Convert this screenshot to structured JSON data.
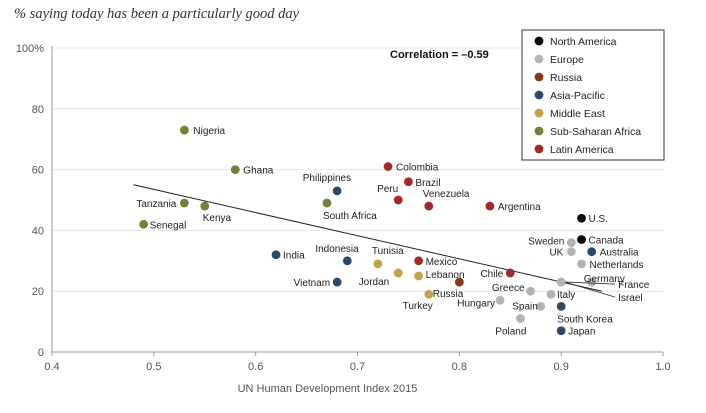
{
  "chart_data": {
    "type": "scatter",
    "title": "% saying today has been a particularly good day",
    "xlabel": "UN Human Development Index 2015",
    "ylabel": "",
    "xlim": [
      0.4,
      1.0
    ],
    "ylim": [
      0,
      100
    ],
    "x_ticks": [
      "0.4",
      "0.5",
      "0.6",
      "0.7",
      "0.8",
      "0.9",
      "1.0"
    ],
    "y_ticks": [
      "0",
      "20",
      "40",
      "60",
      "80",
      "100%"
    ],
    "annotation": "Correlation = –0.59",
    "legend_position": "top-right",
    "regions": [
      {
        "name": "North America",
        "color": "#0a0a0a"
      },
      {
        "name": "Europe",
        "color": "#b3b3b3"
      },
      {
        "name": "Russia",
        "color": "#8b3a1e"
      },
      {
        "name": "Asia-Pacific",
        "color": "#2b4a66"
      },
      {
        "name": "Middle East",
        "color": "#c3a24a"
      },
      {
        "name": "Sub-Saharan Africa",
        "color": "#7c7c3b"
      },
      {
        "name": "Latin America",
        "color": "#a32a2a"
      }
    ],
    "trendline": {
      "x": [
        0.48,
        0.94
      ],
      "y": [
        55,
        20
      ]
    },
    "points": [
      {
        "label": "Nigeria",
        "x": 0.53,
        "y": 73,
        "region": "Sub-Saharan Africa",
        "anchor": "start",
        "dx": 9,
        "dy": 4
      },
      {
        "label": "Ghana",
        "x": 0.58,
        "y": 60,
        "region": "Sub-Saharan Africa",
        "anchor": "start",
        "dx": 8,
        "dy": 4
      },
      {
        "label": "Tanzania",
        "x": 0.53,
        "y": 49,
        "region": "Sub-Saharan Africa",
        "anchor": "end",
        "dx": -8,
        "dy": 4
      },
      {
        "label": "Kenya",
        "x": 0.55,
        "y": 48,
        "region": "Sub-Saharan Africa",
        "anchor": "start",
        "dx": -2,
        "dy": 15
      },
      {
        "label": "Senegal",
        "x": 0.49,
        "y": 42,
        "region": "Sub-Saharan Africa",
        "anchor": "start",
        "dx": 6,
        "dy": 4
      },
      {
        "label": "South Africa",
        "x": 0.67,
        "y": 49,
        "region": "Sub-Saharan Africa",
        "anchor": "start",
        "dx": -4,
        "dy": 16
      },
      {
        "label": "Philippines",
        "x": 0.68,
        "y": 53,
        "region": "Asia-Pacific",
        "anchor": "end",
        "dx": 14,
        "dy": -10
      },
      {
        "label": "India",
        "x": 0.62,
        "y": 32,
        "region": "Asia-Pacific",
        "anchor": "start",
        "dx": 7,
        "dy": 4
      },
      {
        "label": "Indonesia",
        "x": 0.69,
        "y": 30,
        "region": "Asia-Pacific",
        "anchor": "start",
        "dx": -32,
        "dy": -9
      },
      {
        "label": "Vietnam",
        "x": 0.68,
        "y": 23,
        "region": "Asia-Pacific",
        "anchor": "end",
        "dx": -7,
        "dy": 4
      },
      {
        "label": "Australia",
        "x": 0.93,
        "y": 33,
        "region": "Asia-Pacific",
        "anchor": "start",
        "dx": 8,
        "dy": 4
      },
      {
        "label": "South Korea",
        "x": 0.9,
        "y": 15,
        "region": "Asia-Pacific",
        "anchor": "start",
        "dx": -4,
        "dy": 16
      },
      {
        "label": "Japan",
        "x": 0.9,
        "y": 7,
        "region": "Asia-Pacific",
        "anchor": "start",
        "dx": 7,
        "dy": 4
      },
      {
        "label": "Colombia",
        "x": 0.73,
        "y": 61,
        "region": "Latin America",
        "anchor": "start",
        "dx": 8,
        "dy": 4
      },
      {
        "label": "Brazil",
        "x": 0.75,
        "y": 56,
        "region": "Latin America",
        "anchor": "start",
        "dx": 7,
        "dy": 4
      },
      {
        "label": "Peru",
        "x": 0.74,
        "y": 50,
        "region": "Latin America",
        "anchor": "end",
        "dx": 0,
        "dy": -8
      },
      {
        "label": "Venezuela",
        "x": 0.77,
        "y": 48,
        "region": "Latin America",
        "anchor": "start",
        "dx": -6,
        "dy": -9
      },
      {
        "label": "Argentina",
        "x": 0.83,
        "y": 48,
        "region": "Latin America",
        "anchor": "start",
        "dx": 8,
        "dy": 4
      },
      {
        "label": "Mexico",
        "x": 0.76,
        "y": 30,
        "region": "Latin America",
        "anchor": "start",
        "dx": 7,
        "dy": 4
      },
      {
        "label": "Chile",
        "x": 0.85,
        "y": 26,
        "region": "Latin America",
        "anchor": "end",
        "dx": -7,
        "dy": 4
      },
      {
        "label": "Tunisia",
        "x": 0.72,
        "y": 29,
        "region": "Middle East",
        "anchor": "start",
        "dx": -6,
        "dy": -10
      },
      {
        "label": "Lebanon",
        "x": 0.76,
        "y": 25,
        "region": "Middle East",
        "anchor": "start",
        "dx": 7,
        "dy": 2
      },
      {
        "label": "Jordan",
        "x": 0.74,
        "y": 26,
        "region": "Middle East",
        "anchor": "end",
        "dx": -9,
        "dy": 12
      },
      {
        "label": "Turkey",
        "x": 0.77,
        "y": 19,
        "region": "Middle East",
        "anchor": "end",
        "dx": 4,
        "dy": 15
      },
      {
        "label": "Israel",
        "x": 0.9,
        "y": 23,
        "region": "Middle East",
        "anchor": "start",
        "dx": 0,
        "dy": 0
      },
      {
        "label": "Russia",
        "x": 0.8,
        "y": 23,
        "region": "Russia",
        "anchor": "end",
        "dx": 4,
        "dy": 15
      },
      {
        "label": "U.S.",
        "x": 0.92,
        "y": 44,
        "region": "North America",
        "anchor": "start",
        "dx": 7,
        "dy": 4
      },
      {
        "label": "Canada",
        "x": 0.92,
        "y": 37,
        "region": "North America",
        "anchor": "start",
        "dx": 7,
        "dy": 4
      },
      {
        "label": "Sweden",
        "x": 0.91,
        "y": 36,
        "region": "Europe",
        "anchor": "end",
        "dx": -7,
        "dy": 2
      },
      {
        "label": "UK",
        "x": 0.91,
        "y": 33,
        "region": "Europe",
        "anchor": "end",
        "dx": -8,
        "dy": 4
      },
      {
        "label": "Netherlands",
        "x": 0.92,
        "y": 29,
        "region": "Europe",
        "anchor": "start",
        "dx": 8,
        "dy": 4
      },
      {
        "label": "Germany",
        "x": 0.93,
        "y": 23,
        "region": "Europe",
        "anchor": "start",
        "dx": -8,
        "dy": 0
      },
      {
        "label": "France",
        "x": 0.9,
        "y": 23,
        "region": "Europe",
        "anchor": "start",
        "dx": 0,
        "dy": 0
      },
      {
        "label": "Italy",
        "x": 0.89,
        "y": 19,
        "region": "Europe",
        "anchor": "start",
        "dx": 6,
        "dy": 4
      },
      {
        "label": "Greece",
        "x": 0.87,
        "y": 20,
        "region": "Europe",
        "anchor": "end",
        "dx": -6,
        "dy": 0
      },
      {
        "label": "Hungary",
        "x": 0.84,
        "y": 17,
        "region": "Europe",
        "anchor": "end",
        "dx": -5,
        "dy": 6
      },
      {
        "label": "Spain",
        "x": 0.88,
        "y": 15,
        "region": "Europe",
        "anchor": "end",
        "dx": -3,
        "dy": 3
      },
      {
        "label": "Poland",
        "x": 0.86,
        "y": 11,
        "region": "Europe",
        "anchor": "end",
        "dx": 6,
        "dy": 16
      }
    ],
    "callouts": [
      {
        "label": "France",
        "from": "France",
        "text_offset": [
          57,
          5
        ]
      },
      {
        "label": "Israel",
        "from": "Israel",
        "text_offset": [
          57,
          18
        ]
      }
    ]
  }
}
